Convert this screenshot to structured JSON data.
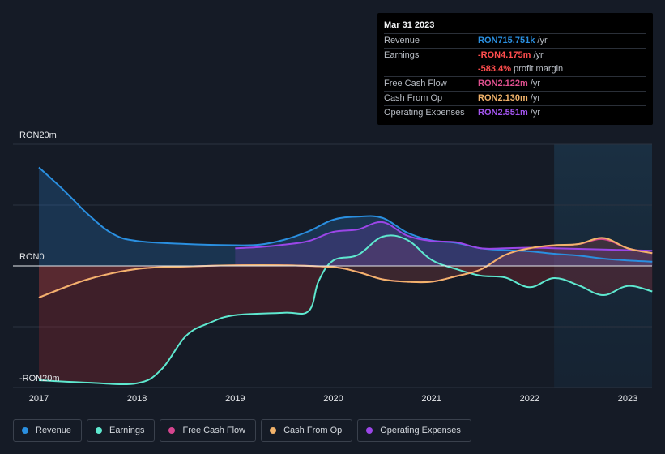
{
  "chart_data": {
    "type": "area",
    "ylim": [
      -20,
      20
    ],
    "y_tick_labels": [
      "RON20m",
      "RON0",
      "-RON20m"
    ],
    "x_tick_labels": [
      "2017",
      "2018",
      "2019",
      "2020",
      "2021",
      "2022",
      "2023"
    ],
    "x_range": [
      2017.0,
      2023.25
    ],
    "forecast_shading_start": 2022.25,
    "series": [
      {
        "name": "Revenue",
        "color": "#2a8fe0",
        "x": [
          2017.0,
          2017.25,
          2017.5,
          2017.75,
          2018.0,
          2018.5,
          2019.0,
          2019.25,
          2019.5,
          2019.75,
          2020.0,
          2020.25,
          2020.5,
          2020.75,
          2021.0,
          2021.25,
          2021.5,
          2021.75,
          2022.0,
          2022.25,
          2022.5,
          2022.75,
          2023.0,
          2023.25
        ],
        "values": [
          16.2,
          12.5,
          8.5,
          5.3,
          4.1,
          3.6,
          3.4,
          3.5,
          4.3,
          5.7,
          7.6,
          8.1,
          7.9,
          5.5,
          4.2,
          3.8,
          2.9,
          2.6,
          2.4,
          2.0,
          1.7,
          1.2,
          0.9,
          0.7
        ]
      },
      {
        "name": "Earnings",
        "color": "#5ee8cf",
        "x": [
          2017.0,
          2017.5,
          2018.0,
          2018.25,
          2018.5,
          2018.75,
          2019.0,
          2019.5,
          2019.75,
          2019.85,
          2020.0,
          2020.25,
          2020.5,
          2020.75,
          2021.0,
          2021.25,
          2021.5,
          2021.75,
          2022.0,
          2022.25,
          2022.5,
          2022.75,
          2023.0,
          2023.25
        ],
        "values": [
          -18.8,
          -19.2,
          -19.3,
          -17.0,
          -11.5,
          -9.3,
          -8.1,
          -7.7,
          -7.4,
          -2.5,
          0.9,
          1.8,
          4.8,
          4.3,
          1.0,
          -0.5,
          -1.6,
          -1.9,
          -3.5,
          -2.0,
          -3.2,
          -4.8,
          -3.3,
          -4.2
        ]
      },
      {
        "name": "Free Cash Flow",
        "color": "#d6458f",
        "x": [
          2017.0,
          2017.5,
          2018.0,
          2018.5,
          2019.0,
          2019.5,
          2020.0,
          2020.25,
          2020.5,
          2020.75,
          2021.0,
          2021.25,
          2021.5,
          2021.75,
          2022.0,
          2022.25,
          2022.5,
          2022.75,
          2023.0,
          2023.25
        ],
        "values": [
          -5.2,
          -2.2,
          -0.5,
          -0.1,
          0.1,
          0.1,
          -0.2,
          -1.0,
          -2.2,
          -2.6,
          -2.6,
          -1.7,
          -0.6,
          1.8,
          2.9,
          3.3,
          3.6,
          4.4,
          2.9,
          2.1
        ]
      },
      {
        "name": "Cash From Op",
        "color": "#f2b36b",
        "x": [
          2017.0,
          2017.5,
          2018.0,
          2018.5,
          2019.0,
          2019.5,
          2020.0,
          2020.25,
          2020.5,
          2020.75,
          2021.0,
          2021.25,
          2021.5,
          2021.75,
          2022.0,
          2022.25,
          2022.5,
          2022.75,
          2023.0,
          2023.25
        ],
        "values": [
          -5.2,
          -2.2,
          -0.5,
          -0.1,
          0.1,
          0.1,
          -0.2,
          -1.0,
          -2.2,
          -2.6,
          -2.6,
          -1.7,
          -0.6,
          1.8,
          2.9,
          3.4,
          3.6,
          4.6,
          2.9,
          2.1
        ]
      },
      {
        "name": "Operating Expenses",
        "color": "#9b46e8",
        "x": [
          2019.0,
          2019.25,
          2019.5,
          2019.75,
          2020.0,
          2020.25,
          2020.5,
          2020.75,
          2021.0,
          2021.25,
          2021.5,
          2021.75,
          2022.0,
          2022.25,
          2022.5,
          2022.75,
          2023.0,
          2023.25
        ],
        "values": [
          2.9,
          3.1,
          3.5,
          4.1,
          5.6,
          6.0,
          7.2,
          5.0,
          4.1,
          3.9,
          2.9,
          2.9,
          3.0,
          2.9,
          2.8,
          2.7,
          2.6,
          2.5
        ]
      }
    ]
  },
  "tooltip": {
    "date": "Mar 31 2023",
    "rows": [
      {
        "name": "Revenue",
        "value": "RON715.751k",
        "unit": " /yr",
        "color": "#2a8fe0"
      },
      {
        "name": "Earnings",
        "value": "-RON4.175m",
        "unit": " /yr",
        "color": "#ff4d4d"
      },
      {
        "name": "",
        "value": "-583.4%",
        "unit": " profit margin",
        "color": "#ff4d4d"
      },
      {
        "name": "Free Cash Flow",
        "value": "RON2.122m",
        "unit": " /yr",
        "color": "#e0508f"
      },
      {
        "name": "Cash From Op",
        "value": "RON2.130m",
        "unit": " /yr",
        "color": "#f2b36b"
      },
      {
        "name": "Operating Expenses",
        "value": "RON2.551m",
        "unit": " /yr",
        "color": "#a455f0"
      }
    ]
  },
  "legend": [
    {
      "label": "Revenue",
      "color": "#2a8fe0"
    },
    {
      "label": "Earnings",
      "color": "#5ee8cf"
    },
    {
      "label": "Free Cash Flow",
      "color": "#d6458f"
    },
    {
      "label": "Cash From Op",
      "color": "#f2b36b"
    },
    {
      "label": "Operating Expenses",
      "color": "#9b46e8"
    }
  ]
}
